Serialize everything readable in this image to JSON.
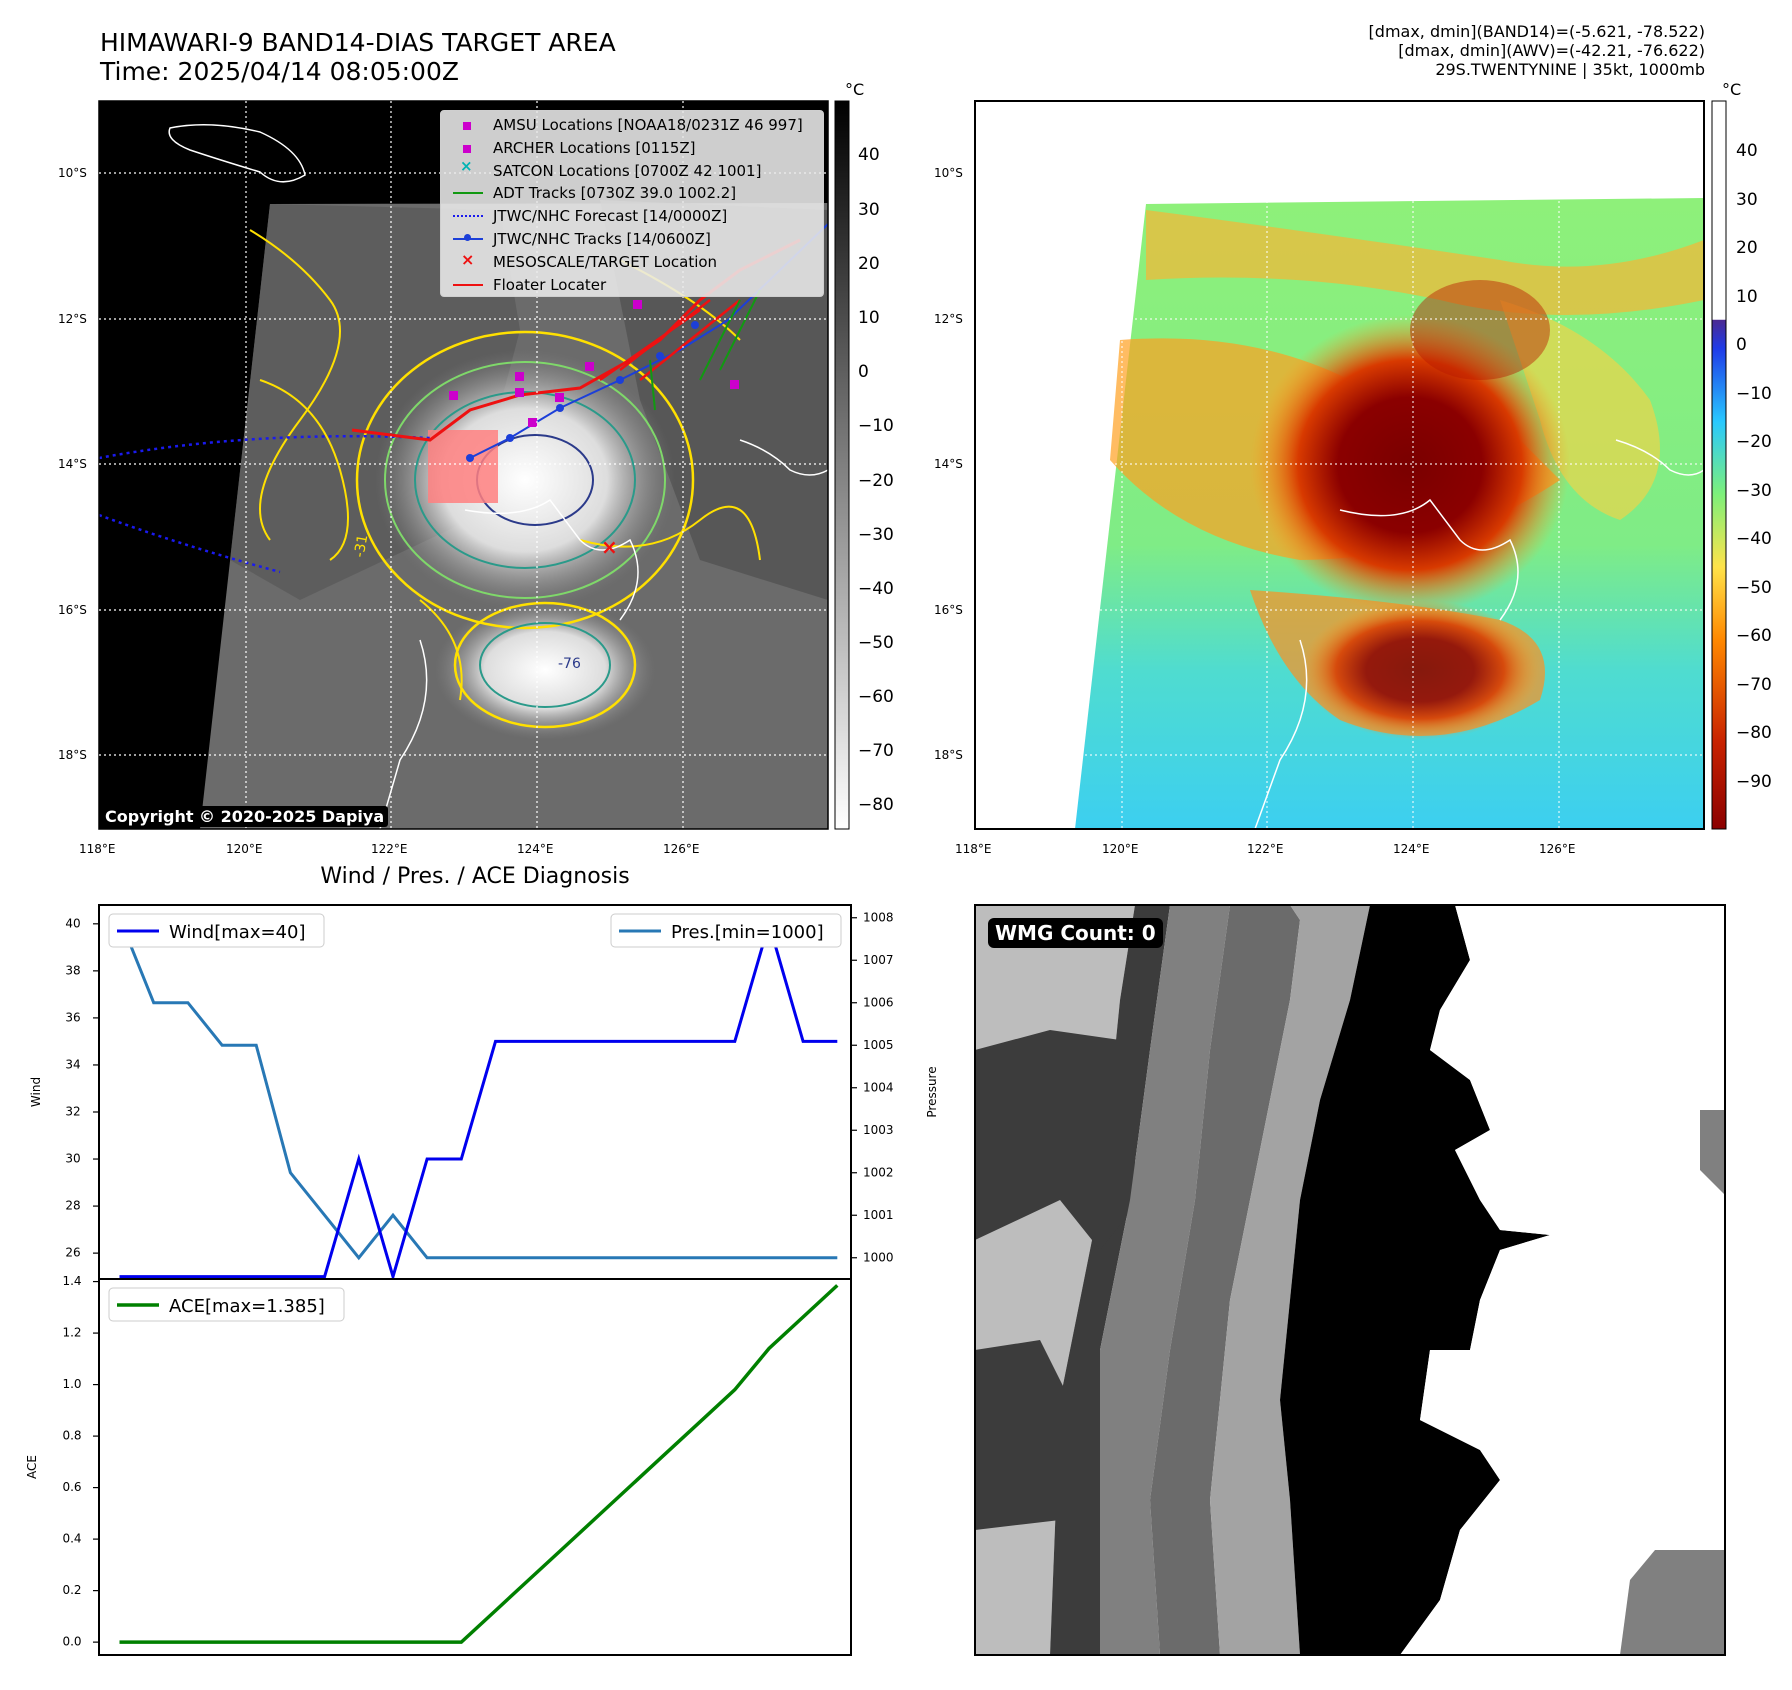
{
  "figure": {
    "title_line1": "HIMAWARI-9 BAND14-DIAS TARGET AREA",
    "title_line2": "Time: 2025/04/14 08:05:00Z",
    "info_line1": "[dmax, dmin](BAND14)=(-5.621, -78.522)",
    "info_line2": "[dmax, dmin](AWV)=(-42.21, -76.622)",
    "info_line3": "29S.TWENTYNINE | 35kt, 1000mb"
  },
  "map_left": {
    "copyright": "Copyright © 2020-2025 Dapiya",
    "lat_labels": [
      "10°S",
      "12°S",
      "14°S",
      "16°S",
      "18°S"
    ],
    "lon_labels": [
      "118°E",
      "120°E",
      "122°E",
      "124°E",
      "126°E"
    ],
    "colorbar_unit": "°C",
    "colorbar_ticks": [
      "40",
      "30",
      "20",
      "10",
      "0",
      "−10",
      "−20",
      "−30",
      "−40",
      "−50",
      "−60",
      "−70",
      "−80"
    ],
    "legend": [
      "AMSU Locations [NOAA18/0231Z 46 997]",
      "ARCHER Locations [0115Z]",
      "SATCON Locations [0700Z 42 1001]",
      "ADT Tracks [0730Z 39.0 1002.2]",
      "JTWC/NHC Forecast [14/0000Z]",
      "JTWC/NHC Tracks [14/0600Z]",
      "MESOSCALE/TARGET Location",
      "Floater Locater"
    ],
    "contour_labels": [
      "-31",
      "-76"
    ]
  },
  "map_right": {
    "lat_labels": [
      "10°S",
      "12°S",
      "14°S",
      "16°S",
      "18°S"
    ],
    "lon_labels": [
      "118°E",
      "120°E",
      "122°E",
      "124°E",
      "126°E"
    ],
    "colorbar_unit": "°C",
    "colorbar_ticks": [
      "40",
      "30",
      "20",
      "10",
      "0",
      "−10",
      "−20",
      "−30",
      "−40",
      "−50",
      "−60",
      "−70",
      "−80",
      "−90"
    ]
  },
  "wmg": {
    "label": "WMG Count: 0"
  },
  "colors": {
    "wind": "#0000ee",
    "pressure": "#2878b5",
    "ace": "#008000",
    "forecast": "#1a1aee",
    "track": "#1c3fd8",
    "floater": "#ee1111"
  },
  "chart_data": [
    {
      "type": "line",
      "title": "Wind / Pres. / ACE Diagnosis",
      "ylabel": "Wind",
      "y2label": "Pressure",
      "ylim": [
        24.9,
        40.8
      ],
      "yticks": [
        26,
        28,
        30,
        32,
        34,
        36,
        38,
        40
      ],
      "y2lim": [
        999.5,
        1008.3
      ],
      "y2ticks": [
        1000,
        1001,
        1002,
        1003,
        1004,
        1005,
        1006,
        1007,
        1008
      ],
      "xlim": [
        -0.6,
        21.4
      ],
      "series": [
        {
          "name": "Wind[max=40]",
          "axis": "left",
          "values": [
            25,
            25,
            25,
            25,
            25,
            25,
            25,
            30,
            25,
            30,
            30,
            35,
            35,
            35,
            35,
            35,
            35,
            35,
            35,
            40,
            35,
            35
          ]
        },
        {
          "name": "Pres.[min=1000]",
          "axis": "right",
          "values": [
            1008,
            1006,
            1006,
            1005,
            1005,
            1002,
            1001,
            1000,
            1001,
            1000,
            1000,
            1000,
            1000,
            1000,
            1000,
            1000,
            1000,
            1000,
            1000,
            1000,
            1000,
            1000
          ]
        }
      ]
    },
    {
      "type": "line",
      "ylabel": "ACE",
      "ylim": [
        -0.05,
        1.41
      ],
      "yticks": [
        "0.0",
        "0.2",
        "0.4",
        "0.6",
        "0.8",
        "1.0",
        "1.2",
        "1.4"
      ],
      "xlim": [
        -0.6,
        21.4
      ],
      "series": [
        {
          "name": "ACE[max=1.385]",
          "values": [
            0,
            0,
            0,
            0,
            0,
            0,
            0,
            0,
            0,
            0,
            0,
            0.1225,
            0.245,
            0.3675,
            0.49,
            0.6125,
            0.735,
            0.8575,
            0.98,
            1.14,
            1.2625,
            1.385
          ]
        }
      ]
    }
  ]
}
